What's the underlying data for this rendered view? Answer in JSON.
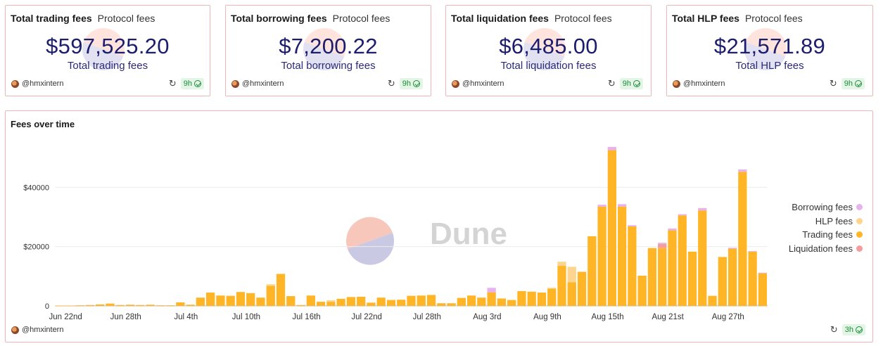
{
  "kpis": [
    {
      "title": "Total trading fees",
      "subtitle": "Protocol fees",
      "value": "$597,525.20",
      "label": "Total trading fees",
      "author": "@hmxintern",
      "age": "9h"
    },
    {
      "title": "Total borrowing fees",
      "subtitle": "Protocol fees",
      "value": "$7,200.22",
      "label": "Total borrowing fees",
      "author": "@hmxintern",
      "age": "9h"
    },
    {
      "title": "Total liquidation fees",
      "subtitle": "Protocol fees",
      "value": "$6,485.00",
      "label": "Total liquidation fees",
      "author": "@hmxintern",
      "age": "9h"
    },
    {
      "title": "Total HLP fees",
      "subtitle": "Protocol fees",
      "value": "$21,571.89",
      "label": "Total HLP fees",
      "author": "@hmxintern",
      "age": "9h"
    }
  ],
  "chart": {
    "title": "Fees over time",
    "author": "@hmxintern",
    "age": "3h",
    "watermark": "Dune"
  },
  "colors": {
    "trading": "#ffb526",
    "hlp": "#fdd58e",
    "borrowing": "#e7b2ee",
    "liquidation": "#f59c9c",
    "accent": "#1d1d6e"
  },
  "chart_data": {
    "type": "bar",
    "stacked": true,
    "title": "Fees over time",
    "ylim": [
      0,
      55000
    ],
    "yticks": [
      0,
      20000,
      40000
    ],
    "ytick_labels": [
      "0",
      "$20000",
      "$40000"
    ],
    "xtick_labels": [
      {
        "index": 0,
        "label": "Jun 22nd"
      },
      {
        "index": 6,
        "label": "Jun 28th"
      },
      {
        "index": 12,
        "label": "Jul 4th"
      },
      {
        "index": 18,
        "label": "Jul 10th"
      },
      {
        "index": 24,
        "label": "Jul 16th"
      },
      {
        "index": 30,
        "label": "Jul 22nd"
      },
      {
        "index": 36,
        "label": "Jul 28th"
      },
      {
        "index": 42,
        "label": "Aug 3rd"
      },
      {
        "index": 48,
        "label": "Aug 9th"
      },
      {
        "index": 54,
        "label": "Aug 15th"
      },
      {
        "index": 60,
        "label": "Aug 21st"
      },
      {
        "index": 66,
        "label": "Aug 27th"
      }
    ],
    "legend": [
      "Borrowing fees",
      "HLP fees",
      "Trading fees",
      "Liquidation fees"
    ],
    "legend_position": "right",
    "series": [
      {
        "name": "Trading fees",
        "values": [
          100,
          100,
          200,
          300,
          500,
          800,
          300,
          400,
          300,
          400,
          200,
          200,
          1200,
          400,
          2800,
          4500,
          3500,
          3400,
          4700,
          4300,
          2800,
          6800,
          10800,
          3300,
          300,
          3500,
          1400,
          1400,
          2400,
          3000,
          3100,
          1100,
          2800,
          2000,
          2100,
          3400,
          3500,
          3700,
          900,
          900,
          2700,
          3500,
          2800,
          4600,
          2500,
          2000,
          5000,
          4800,
          4500,
          5800,
          13500,
          8000,
          11500,
          23500,
          33500,
          52500,
          33500,
          26800,
          10200,
          19500,
          19500,
          25500,
          30500,
          18300,
          32200,
          3400,
          16500,
          19300,
          45200,
          18300,
          11000
        ]
      },
      {
        "name": "HLP fees",
        "values": [
          0,
          0,
          0,
          0,
          0,
          0,
          0,
          0,
          0,
          0,
          0,
          0,
          0,
          0,
          0,
          0,
          0,
          0,
          0,
          0,
          0,
          500,
          0,
          0,
          0,
          0,
          0,
          500,
          0,
          0,
          0,
          0,
          0,
          0,
          0,
          0,
          0,
          0,
          0,
          0,
          0,
          0,
          0,
          0,
          0,
          0,
          0,
          0,
          0,
          300,
          1400,
          5200,
          0,
          0,
          0,
          0,
          0,
          0,
          0,
          0,
          0,
          0,
          0,
          0,
          0,
          0,
          0,
          0,
          0,
          0,
          0
        ]
      },
      {
        "name": "Borrowing fees",
        "values": [
          0,
          0,
          0,
          0,
          0,
          0,
          0,
          0,
          0,
          0,
          0,
          0,
          0,
          0,
          0,
          0,
          0,
          0,
          0,
          0,
          0,
          0,
          0,
          0,
          0,
          0,
          0,
          0,
          0,
          0,
          0,
          0,
          0,
          0,
          0,
          0,
          0,
          0,
          0,
          0,
          0,
          0,
          0,
          1500,
          0,
          0,
          0,
          0,
          0,
          0,
          0,
          0,
          0,
          0,
          600,
          1100,
          800,
          400,
          0,
          0,
          400,
          600,
          400,
          0,
          800,
          0,
          0,
          300,
          800,
          200,
          200
        ]
      },
      {
        "name": "Liquidation fees",
        "values": [
          0,
          0,
          0,
          0,
          0,
          0,
          0,
          0,
          0,
          0,
          0,
          0,
          0,
          0,
          0,
          0,
          0,
          0,
          0,
          0,
          0,
          0,
          0,
          0,
          0,
          0,
          0,
          0,
          0,
          0,
          0,
          0,
          0,
          0,
          0,
          0,
          0,
          0,
          0,
          0,
          0,
          0,
          0,
          0,
          0,
          0,
          0,
          0,
          0,
          0,
          0,
          0,
          0,
          0,
          0,
          0,
          0,
          0,
          0,
          0,
          1400,
          0,
          0,
          0,
          0,
          0,
          0,
          0,
          0,
          0,
          0
        ]
      }
    ]
  }
}
